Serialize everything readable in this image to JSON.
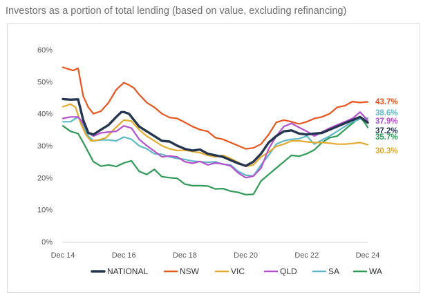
{
  "chart_data": {
    "type": "line",
    "title": "Investors as a portion of total lending (based on value, excluding refinancing)",
    "xlabel": "",
    "ylabel": "",
    "ylim": [
      0,
      60
    ],
    "yticks": [
      "0%",
      "10%",
      "20%",
      "30%",
      "40%",
      "50%",
      "60%"
    ],
    "ytick_values": [
      0,
      10,
      20,
      30,
      40,
      50,
      60
    ],
    "xtick_labels": [
      "Dec 14",
      "Dec 16",
      "Dec 18",
      "Dec 20",
      "Dec 22",
      "Dec 24"
    ],
    "xtick_positions": [
      0,
      24,
      48,
      72,
      96,
      120
    ],
    "x_max": 120,
    "grid": false,
    "legend_position": "bottom",
    "series": [
      {
        "name": "WA",
        "color": "#2e9a55",
        "end_label": "35.7%",
        "points": [
          [
            0,
            36.2
          ],
          [
            3,
            34.5
          ],
          [
            6,
            33.8
          ],
          [
            8,
            31
          ],
          [
            10,
            28
          ],
          [
            12,
            25
          ],
          [
            15,
            23.6
          ],
          [
            18,
            24
          ],
          [
            21,
            23.5
          ],
          [
            24,
            24.6
          ],
          [
            27,
            25.3
          ],
          [
            30,
            22
          ],
          [
            33,
            21
          ],
          [
            36,
            22.6
          ],
          [
            39,
            20.3
          ],
          [
            42,
            20
          ],
          [
            45,
            19.8
          ],
          [
            48,
            18
          ],
          [
            51,
            17.5
          ],
          [
            54,
            17.5
          ],
          [
            57,
            17.4
          ],
          [
            60,
            16.5
          ],
          [
            63,
            16.6
          ],
          [
            66,
            15.8
          ],
          [
            69,
            15.4
          ],
          [
            72,
            14.7
          ],
          [
            75,
            14.8
          ],
          [
            78,
            19
          ],
          [
            81,
            21
          ],
          [
            84,
            23
          ],
          [
            87,
            25
          ],
          [
            90,
            27
          ],
          [
            93,
            26.7
          ],
          [
            96,
            27.5
          ],
          [
            99,
            28.7
          ],
          [
            102,
            31
          ],
          [
            105,
            32.5
          ],
          [
            108,
            33
          ],
          [
            111,
            35
          ],
          [
            114,
            37
          ],
          [
            117,
            39
          ],
          [
            119,
            37
          ],
          [
            120,
            35.7
          ]
        ]
      },
      {
        "name": "SA",
        "color": "#5cb8c7",
        "end_label": "38.6%",
        "points": [
          [
            0,
            37.5
          ],
          [
            3,
            37.5
          ],
          [
            6,
            39
          ],
          [
            8,
            36
          ],
          [
            10,
            33
          ],
          [
            12,
            31.5
          ],
          [
            15,
            31.8
          ],
          [
            18,
            31.8
          ],
          [
            21,
            31.5
          ],
          [
            24,
            32.7
          ],
          [
            27,
            32
          ],
          [
            30,
            30
          ],
          [
            33,
            29
          ],
          [
            36,
            27.5
          ],
          [
            39,
            27.3
          ],
          [
            42,
            26.5
          ],
          [
            45,
            26
          ],
          [
            48,
            25.7
          ],
          [
            51,
            25.2
          ],
          [
            54,
            25
          ],
          [
            57,
            24.8
          ],
          [
            60,
            25
          ],
          [
            63,
            24.2
          ],
          [
            66,
            24
          ],
          [
            69,
            22
          ],
          [
            72,
            20.8
          ],
          [
            75,
            20.5
          ],
          [
            78,
            24
          ],
          [
            81,
            27
          ],
          [
            84,
            30.5
          ],
          [
            87,
            31.5
          ],
          [
            90,
            32
          ],
          [
            93,
            32.2
          ],
          [
            96,
            33
          ],
          [
            99,
            30.5
          ],
          [
            102,
            31.8
          ],
          [
            105,
            33
          ],
          [
            108,
            34.5
          ],
          [
            111,
            36
          ],
          [
            114,
            37.5
          ],
          [
            117,
            38.3
          ],
          [
            120,
            38.6
          ]
        ]
      },
      {
        "name": "VIC",
        "color": "#e4a92d",
        "end_label": "30.3%",
        "points": [
          [
            0,
            42.2
          ],
          [
            3,
            43
          ],
          [
            5,
            42
          ],
          [
            7,
            37
          ],
          [
            9,
            33.5
          ],
          [
            11,
            31.5
          ],
          [
            14,
            31.8
          ],
          [
            17,
            32.5
          ],
          [
            20,
            35
          ],
          [
            23,
            37.3
          ],
          [
            24,
            38
          ],
          [
            27,
            37.7
          ],
          [
            30,
            35
          ],
          [
            33,
            33
          ],
          [
            36,
            31.5
          ],
          [
            39,
            30
          ],
          [
            42,
            29
          ],
          [
            45,
            28.5
          ],
          [
            48,
            28.6
          ],
          [
            51,
            28.2
          ],
          [
            54,
            27.8
          ],
          [
            57,
            27
          ],
          [
            60,
            26.5
          ],
          [
            63,
            27
          ],
          [
            66,
            26
          ],
          [
            69,
            24.8
          ],
          [
            72,
            23.5
          ],
          [
            75,
            24
          ],
          [
            78,
            26.5
          ],
          [
            81,
            28
          ],
          [
            84,
            29.8
          ],
          [
            87,
            30.5
          ],
          [
            90,
            31.5
          ],
          [
            93,
            31.5
          ],
          [
            96,
            31.2
          ],
          [
            99,
            31
          ],
          [
            102,
            31
          ],
          [
            105,
            30.8
          ],
          [
            108,
            30.5
          ],
          [
            111,
            30.5
          ],
          [
            114,
            30.7
          ],
          [
            117,
            31
          ],
          [
            120,
            30.3
          ]
        ]
      },
      {
        "name": "QLD",
        "color": "#b44fcf",
        "end_label": "37.9%",
        "points": [
          [
            0,
            38.5
          ],
          [
            3,
            39
          ],
          [
            6,
            39
          ],
          [
            8,
            37
          ],
          [
            10,
            34
          ],
          [
            12,
            33
          ],
          [
            15,
            34
          ],
          [
            18,
            34.3
          ],
          [
            21,
            34.5
          ],
          [
            24,
            36.2
          ],
          [
            27,
            35.5
          ],
          [
            30,
            32
          ],
          [
            33,
            30
          ],
          [
            36,
            28.3
          ],
          [
            39,
            26.5
          ],
          [
            42,
            26.8
          ],
          [
            45,
            26.5
          ],
          [
            48,
            25
          ],
          [
            51,
            24.5
          ],
          [
            54,
            25.1
          ],
          [
            57,
            24
          ],
          [
            60,
            24.6
          ],
          [
            63,
            24.3
          ],
          [
            66,
            23.7
          ],
          [
            69,
            21.5
          ],
          [
            72,
            20
          ],
          [
            75,
            20.5
          ],
          [
            78,
            23
          ],
          [
            81,
            29
          ],
          [
            84,
            33
          ],
          [
            87,
            36
          ],
          [
            90,
            37
          ],
          [
            93,
            35.7
          ],
          [
            96,
            34.5
          ],
          [
            99,
            33
          ],
          [
            102,
            34.3
          ],
          [
            105,
            35.5
          ],
          [
            108,
            36.5
          ],
          [
            111,
            37.5
          ],
          [
            114,
            38.5
          ],
          [
            117,
            40.5
          ],
          [
            120,
            37.9
          ]
        ]
      },
      {
        "name": "NATIONAL",
        "color": "#24364f",
        "end_label": "37.2%",
        "points": [
          [
            0,
            44.6
          ],
          [
            3,
            44.4
          ],
          [
            6,
            44.5
          ],
          [
            8,
            38
          ],
          [
            10,
            34
          ],
          [
            12,
            33.5
          ],
          [
            15,
            35
          ],
          [
            18,
            36.5
          ],
          [
            21,
            39
          ],
          [
            23,
            40.5
          ],
          [
            24,
            40.5
          ],
          [
            26,
            40
          ],
          [
            28,
            38
          ],
          [
            30,
            36
          ],
          [
            33,
            34.5
          ],
          [
            36,
            33
          ],
          [
            39,
            31.5
          ],
          [
            42,
            31.3
          ],
          [
            45,
            30
          ],
          [
            48,
            29
          ],
          [
            51,
            28.5
          ],
          [
            54,
            28.8
          ],
          [
            57,
            27.5
          ],
          [
            60,
            27
          ],
          [
            63,
            26.5
          ],
          [
            66,
            25.5
          ],
          [
            69,
            24.5
          ],
          [
            72,
            23.7
          ],
          [
            75,
            25
          ],
          [
            78,
            27.5
          ],
          [
            81,
            31
          ],
          [
            84,
            33
          ],
          [
            87,
            34.5
          ],
          [
            90,
            34.8
          ],
          [
            93,
            33.8
          ],
          [
            96,
            33.5
          ],
          [
            99,
            33.8
          ],
          [
            102,
            34
          ],
          [
            105,
            35
          ],
          [
            108,
            36
          ],
          [
            111,
            37
          ],
          [
            114,
            38
          ],
          [
            117,
            39
          ],
          [
            120,
            37.2
          ]
        ]
      },
      {
        "name": "NSW",
        "color": "#e9531c",
        "end_label": "43.7%",
        "points": [
          [
            0,
            54.5
          ],
          [
            2,
            54
          ],
          [
            4,
            53.5
          ],
          [
            6,
            54.2
          ],
          [
            8,
            45.5
          ],
          [
            10,
            42
          ],
          [
            12,
            40
          ],
          [
            15,
            40.8
          ],
          [
            18,
            43.5
          ],
          [
            21,
            47.5
          ],
          [
            24,
            49.7
          ],
          [
            26,
            49
          ],
          [
            28,
            48
          ],
          [
            30,
            46
          ],
          [
            33,
            43.5
          ],
          [
            36,
            42
          ],
          [
            39,
            40
          ],
          [
            42,
            38.8
          ],
          [
            45,
            38.5
          ],
          [
            48,
            37.3
          ],
          [
            51,
            36
          ],
          [
            54,
            35
          ],
          [
            57,
            34.5
          ],
          [
            60,
            32.5
          ],
          [
            63,
            32
          ],
          [
            66,
            31
          ],
          [
            69,
            30
          ],
          [
            72,
            29
          ],
          [
            75,
            29.3
          ],
          [
            78,
            30.5
          ],
          [
            81,
            33.5
          ],
          [
            84,
            37.3
          ],
          [
            87,
            38
          ],
          [
            90,
            37.5
          ],
          [
            93,
            36.8
          ],
          [
            96,
            37.5
          ],
          [
            99,
            38.5
          ],
          [
            102,
            39
          ],
          [
            105,
            40
          ],
          [
            108,
            42
          ],
          [
            111,
            42.5
          ],
          [
            114,
            43.8
          ],
          [
            117,
            43.5
          ],
          [
            120,
            43.7
          ]
        ]
      }
    ]
  }
}
